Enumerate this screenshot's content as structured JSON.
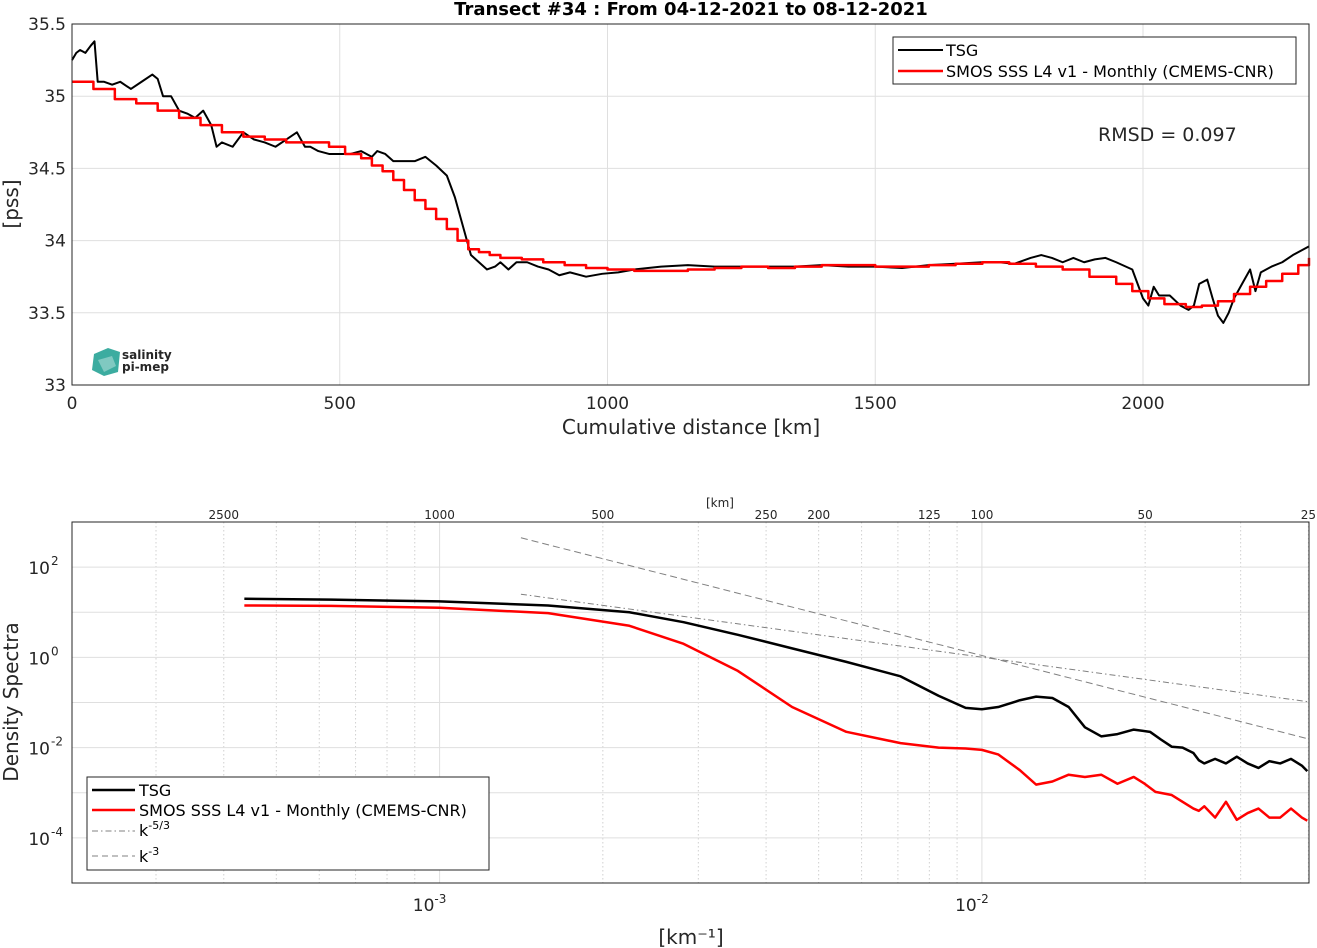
{
  "colors": {
    "tsg": "#000000",
    "smos": "#ff0000",
    "ref": "#808080",
    "logo": "#1a9e8f"
  },
  "logo": {
    "line1": "salinity",
    "line2": "pi-mep"
  },
  "chart_data": [
    {
      "type": "line",
      "title": "Transect #34 : From 04-12-2021 to 08-12-2021",
      "xlabel": "Cumulative distance [km]",
      "ylabel": "[pss]",
      "xlim": [
        0,
        2310
      ],
      "ylim": [
        33,
        35.5
      ],
      "xticks": [
        0,
        500,
        1000,
        1500,
        2000
      ],
      "yticks": [
        33,
        33.5,
        34,
        34.5,
        35,
        35.5
      ],
      "ytick_labels": [
        "33",
        "33.5",
        "34",
        "34.5",
        "35",
        "35.5"
      ],
      "grid": true,
      "legend_position": "top-right",
      "annotation": "RMSD = 0.097",
      "series": [
        {
          "name": "TSG",
          "step": false,
          "x": [
            0,
            8,
            15,
            25,
            35,
            42,
            48,
            60,
            75,
            90,
            110,
            130,
            150,
            160,
            170,
            185,
            200,
            215,
            230,
            245,
            260,
            270,
            280,
            300,
            320,
            340,
            360,
            380,
            400,
            420,
            435,
            445,
            460,
            480,
            500,
            520,
            540,
            560,
            570,
            585,
            600,
            620,
            640,
            660,
            680,
            700,
            715,
            730,
            745,
            760,
            775,
            790,
            800,
            815,
            830,
            850,
            870,
            890,
            910,
            930,
            960,
            990,
            1020,
            1050,
            1100,
            1150,
            1200,
            1250,
            1300,
            1350,
            1400,
            1450,
            1500,
            1550,
            1600,
            1650,
            1700,
            1730,
            1760,
            1790,
            1810,
            1830,
            1850,
            1870,
            1890,
            1910,
            1930,
            1950,
            1980,
            2000,
            2010,
            2020,
            2030,
            2050,
            2070,
            2085,
            2095,
            2105,
            2120,
            2130,
            2140,
            2150,
            2160,
            2170,
            2185,
            2200,
            2210,
            2220,
            2240,
            2260,
            2280,
            2300,
            2310
          ],
          "y": [
            35.25,
            35.3,
            35.32,
            35.3,
            35.35,
            35.38,
            35.1,
            35.1,
            35.08,
            35.1,
            35.05,
            35.1,
            35.15,
            35.12,
            35.0,
            35.0,
            34.9,
            34.88,
            34.85,
            34.9,
            34.8,
            34.65,
            34.68,
            34.65,
            34.75,
            34.7,
            34.68,
            34.65,
            34.7,
            34.75,
            34.65,
            34.65,
            34.62,
            34.6,
            34.6,
            34.6,
            34.62,
            34.58,
            34.62,
            34.6,
            34.55,
            34.55,
            34.55,
            34.58,
            34.52,
            34.45,
            34.3,
            34.1,
            33.9,
            33.85,
            33.8,
            33.82,
            33.85,
            33.8,
            33.85,
            33.85,
            33.82,
            33.8,
            33.76,
            33.78,
            33.75,
            33.77,
            33.78,
            33.8,
            33.82,
            33.83,
            33.82,
            33.82,
            33.82,
            33.82,
            33.83,
            33.82,
            33.82,
            33.81,
            33.83,
            33.84,
            33.85,
            33.85,
            33.84,
            33.88,
            33.9,
            33.88,
            33.85,
            33.88,
            33.85,
            33.87,
            33.88,
            33.85,
            33.8,
            33.6,
            33.55,
            33.68,
            33.62,
            33.62,
            33.55,
            33.52,
            33.55,
            33.7,
            33.73,
            33.6,
            33.48,
            33.43,
            33.5,
            33.6,
            33.7,
            33.8,
            33.65,
            33.78,
            33.82,
            33.85,
            33.9,
            33.94,
            33.96
          ]
        },
        {
          "name": "SMOS SSS L4 v1 - Monthly (CMEMS-CNR)",
          "step": true,
          "x": [
            0,
            40,
            80,
            120,
            160,
            200,
            240,
            280,
            320,
            360,
            400,
            440,
            480,
            510,
            540,
            560,
            580,
            600,
            620,
            640,
            660,
            680,
            700,
            720,
            740,
            760,
            780,
            800,
            840,
            880,
            920,
            960,
            1000,
            1050,
            1100,
            1150,
            1200,
            1250,
            1300,
            1350,
            1400,
            1450,
            1500,
            1550,
            1600,
            1650,
            1700,
            1750,
            1800,
            1850,
            1900,
            1950,
            1980,
            2010,
            2040,
            2080,
            2110,
            2140,
            2170,
            2200,
            2230,
            2260,
            2290,
            2310
          ],
          "y": [
            35.1,
            35.05,
            34.98,
            34.95,
            34.9,
            34.85,
            34.8,
            34.75,
            34.72,
            34.7,
            34.68,
            34.68,
            34.65,
            34.6,
            34.57,
            34.52,
            34.48,
            34.42,
            34.35,
            34.28,
            34.22,
            34.15,
            34.08,
            34.0,
            33.94,
            33.92,
            33.9,
            33.88,
            33.87,
            33.85,
            33.83,
            33.81,
            33.8,
            33.79,
            33.79,
            33.8,
            33.81,
            33.82,
            33.81,
            33.82,
            33.83,
            33.83,
            33.82,
            33.82,
            33.83,
            33.84,
            33.85,
            33.84,
            33.82,
            33.8,
            33.75,
            33.7,
            33.65,
            33.6,
            33.56,
            33.54,
            33.55,
            33.58,
            33.63,
            33.68,
            33.72,
            33.77,
            33.83,
            33.88
          ]
        }
      ]
    },
    {
      "type": "line",
      "xlabel": "[km⁻¹]",
      "ylabel": "Density Spectra",
      "x_scale": "log",
      "y_scale": "log",
      "xlim": [
        0.00021,
        0.0401
      ],
      "ylim_log10": [
        -5,
        3
      ],
      "xticks_log10": [
        -3,
        -2
      ],
      "yticks_log10": [
        -4,
        -2,
        0,
        2
      ],
      "top_axis_label": "[km]",
      "top_axis_ticks_km": [
        2500,
        1000,
        500,
        250,
        200,
        125,
        100,
        50,
        25
      ],
      "grid": true,
      "legend_position": "bottom-left",
      "series": [
        {
          "name": "TSG",
          "log10_x": [
            -3.36,
            -3.2,
            -3.0,
            -2.8,
            -2.65,
            -2.55,
            -2.45,
            -2.35,
            -2.25,
            -2.15,
            -2.08,
            -2.03,
            -2.0,
            -1.97,
            -1.93,
            -1.9,
            -1.87,
            -1.84,
            -1.81,
            -1.78,
            -1.75,
            -1.72,
            -1.69,
            -1.67,
            -1.65,
            -1.63,
            -1.61,
            -1.6,
            -1.59,
            -1.57,
            -1.55,
            -1.53,
            -1.51,
            -1.49,
            -1.47,
            -1.45,
            -1.43,
            -1.41,
            -1.4
          ],
          "log10_y": [
            1.3,
            1.28,
            1.24,
            1.15,
            1.0,
            0.78,
            0.5,
            0.2,
            -0.1,
            -0.42,
            -0.85,
            -1.12,
            -1.15,
            -1.1,
            -0.95,
            -0.87,
            -0.9,
            -1.1,
            -1.55,
            -1.75,
            -1.7,
            -1.6,
            -1.65,
            -1.82,
            -1.98,
            -2.0,
            -2.12,
            -2.28,
            -2.35,
            -2.25,
            -2.35,
            -2.2,
            -2.35,
            -2.45,
            -2.3,
            -2.35,
            -2.25,
            -2.4,
            -2.52
          ]
        },
        {
          "name": "SMOS SSS L4 v1 - Monthly (CMEMS-CNR)",
          "log10_x": [
            -3.36,
            -3.2,
            -3.0,
            -2.8,
            -2.65,
            -2.55,
            -2.45,
            -2.35,
            -2.25,
            -2.15,
            -2.08,
            -2.03,
            -2.0,
            -1.97,
            -1.93,
            -1.9,
            -1.87,
            -1.84,
            -1.81,
            -1.78,
            -1.75,
            -1.72,
            -1.7,
            -1.68,
            -1.65,
            -1.63,
            -1.61,
            -1.6,
            -1.59,
            -1.57,
            -1.55,
            -1.53,
            -1.51,
            -1.49,
            -1.47,
            -1.45,
            -1.43,
            -1.41,
            -1.4
          ],
          "log10_y": [
            1.15,
            1.14,
            1.1,
            0.98,
            0.7,
            0.3,
            -0.3,
            -1.1,
            -1.65,
            -1.9,
            -2.0,
            -2.02,
            -2.05,
            -2.15,
            -2.5,
            -2.82,
            -2.75,
            -2.6,
            -2.65,
            -2.6,
            -2.8,
            -2.65,
            -2.8,
            -2.98,
            -3.05,
            -3.2,
            -3.35,
            -3.4,
            -3.3,
            -3.55,
            -3.2,
            -3.6,
            -3.45,
            -3.35,
            -3.55,
            -3.55,
            -3.35,
            -3.55,
            -3.62
          ]
        },
        {
          "name": "k-5/3",
          "dash": "dashdot",
          "log10_x": [
            -2.85,
            -1.4
          ],
          "log10_y": [
            1.4,
            -0.98
          ]
        },
        {
          "name": "k-3",
          "dash": "dashed",
          "log10_x": [
            -2.85,
            -1.4
          ],
          "log10_y": [
            2.65,
            -1.8
          ]
        }
      ]
    }
  ]
}
